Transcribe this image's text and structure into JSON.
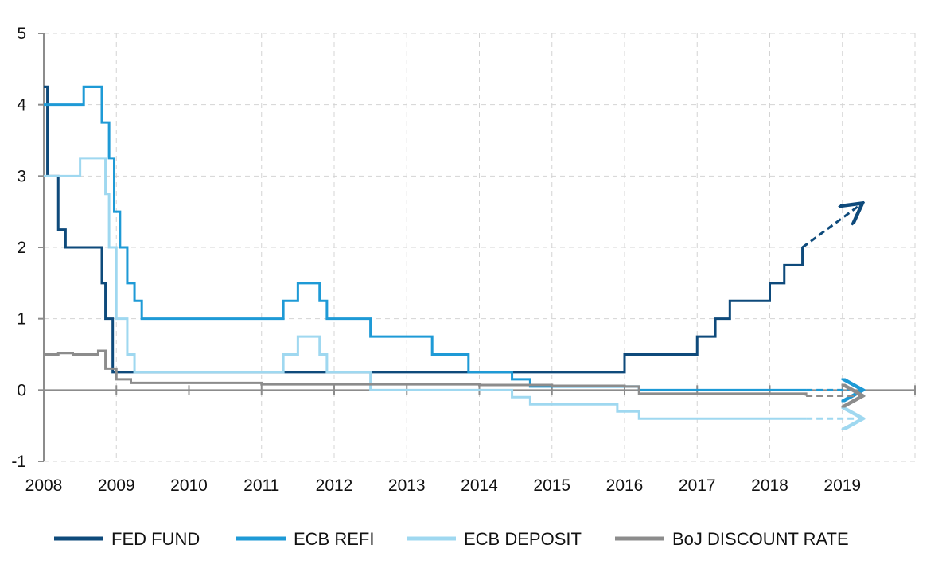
{
  "chart_data": {
    "type": "line",
    "title": "",
    "xlabel": "",
    "ylabel": "",
    "xlim": [
      2008,
      2020
    ],
    "ylim": [
      -1,
      5
    ],
    "x_ticks": [
      "2008",
      "2009",
      "2010",
      "2011",
      "2012",
      "2013",
      "2014",
      "2015",
      "2016",
      "2017",
      "2018",
      "2019"
    ],
    "y_ticks": [
      "5",
      "4",
      "3",
      "2",
      "1",
      "0",
      "-1"
    ],
    "grid": true,
    "legend_position": "bottom",
    "series": [
      {
        "name": "FED FUND",
        "color": "#0e4a7b",
        "points": [
          [
            2008.0,
            4.25
          ],
          [
            2008.05,
            3.0
          ],
          [
            2008.2,
            2.25
          ],
          [
            2008.3,
            2.0
          ],
          [
            2008.75,
            2.0
          ],
          [
            2008.8,
            1.5
          ],
          [
            2008.85,
            1.0
          ],
          [
            2008.95,
            0.25
          ],
          [
            2015.95,
            0.25
          ],
          [
            2016.0,
            0.5
          ],
          [
            2016.95,
            0.5
          ],
          [
            2017.0,
            0.75
          ],
          [
            2017.25,
            1.0
          ],
          [
            2017.45,
            1.25
          ],
          [
            2018.0,
            1.5
          ],
          [
            2018.2,
            1.75
          ],
          [
            2018.45,
            2.0
          ]
        ],
        "projection": [
          [
            2018.45,
            2.0
          ],
          [
            2019.25,
            2.6
          ]
        ]
      },
      {
        "name": "ECB REFI",
        "color": "#1e9ad6",
        "points": [
          [
            2008.0,
            4.0
          ],
          [
            2008.5,
            4.0
          ],
          [
            2008.55,
            4.25
          ],
          [
            2008.75,
            4.25
          ],
          [
            2008.8,
            3.75
          ],
          [
            2008.9,
            3.25
          ],
          [
            2008.97,
            2.5
          ],
          [
            2009.05,
            2.0
          ],
          [
            2009.15,
            1.5
          ],
          [
            2009.25,
            1.25
          ],
          [
            2009.35,
            1.0
          ],
          [
            2011.25,
            1.0
          ],
          [
            2011.3,
            1.25
          ],
          [
            2011.5,
            1.5
          ],
          [
            2011.8,
            1.25
          ],
          [
            2011.9,
            1.0
          ],
          [
            2012.5,
            0.75
          ],
          [
            2013.35,
            0.5
          ],
          [
            2013.85,
            0.25
          ],
          [
            2014.45,
            0.15
          ],
          [
            2014.7,
            0.05
          ],
          [
            2016.2,
            0.0
          ],
          [
            2018.5,
            0.0
          ]
        ],
        "projection": [
          [
            2018.5,
            0.0
          ],
          [
            2019.25,
            0.0
          ]
        ]
      },
      {
        "name": "ECB DEPOSIT",
        "color": "#9fd8f0",
        "points": [
          [
            2008.0,
            3.0
          ],
          [
            2008.45,
            3.0
          ],
          [
            2008.5,
            3.25
          ],
          [
            2008.8,
            3.25
          ],
          [
            2008.85,
            2.75
          ],
          [
            2008.9,
            2.0
          ],
          [
            2009.0,
            1.0
          ],
          [
            2009.15,
            0.5
          ],
          [
            2009.25,
            0.25
          ],
          [
            2011.25,
            0.25
          ],
          [
            2011.3,
            0.5
          ],
          [
            2011.5,
            0.75
          ],
          [
            2011.8,
            0.5
          ],
          [
            2011.9,
            0.25
          ],
          [
            2012.5,
            0.0
          ],
          [
            2014.45,
            -0.1
          ],
          [
            2014.7,
            -0.2
          ],
          [
            2015.9,
            -0.3
          ],
          [
            2016.2,
            -0.4
          ],
          [
            2018.5,
            -0.4
          ]
        ],
        "projection": [
          [
            2018.5,
            -0.4
          ],
          [
            2019.25,
            -0.4
          ]
        ]
      },
      {
        "name": "BoJ DISCOUNT RATE",
        "color": "#8c8c8c",
        "points": [
          [
            2008.0,
            0.5
          ],
          [
            2008.2,
            0.52
          ],
          [
            2008.4,
            0.5
          ],
          [
            2008.6,
            0.5
          ],
          [
            2008.75,
            0.55
          ],
          [
            2008.85,
            0.3
          ],
          [
            2009.0,
            0.15
          ],
          [
            2009.2,
            0.1
          ],
          [
            2010.0,
            0.1
          ],
          [
            2011.0,
            0.08
          ],
          [
            2012.0,
            0.08
          ],
          [
            2013.0,
            0.08
          ],
          [
            2014.0,
            0.07
          ],
          [
            2015.0,
            0.06
          ],
          [
            2016.0,
            0.05
          ],
          [
            2016.2,
            -0.05
          ],
          [
            2016.5,
            -0.05
          ],
          [
            2017.0,
            -0.05
          ],
          [
            2018.0,
            -0.05
          ],
          [
            2018.5,
            -0.08
          ]
        ],
        "projection": [
          [
            2018.5,
            -0.08
          ],
          [
            2019.25,
            -0.08
          ]
        ]
      }
    ]
  }
}
